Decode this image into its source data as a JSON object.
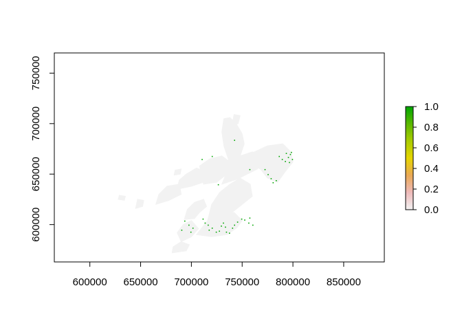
{
  "chart_data": {
    "type": "heatmap",
    "title": "",
    "xlabel": "",
    "ylabel": "",
    "xlim": [
      565000,
      890000
    ],
    "ylim": [
      563000,
      770000
    ],
    "x_ticks": [
      "600000",
      "650000",
      "700000",
      "750000",
      "800000",
      "850000"
    ],
    "y_ticks": [
      "600000",
      "650000",
      "700000",
      "750000"
    ],
    "legend": {
      "position": "right",
      "ticks": [
        "0.0",
        "0.2",
        "0.4",
        "0.6",
        "0.8",
        "1.0"
      ],
      "min": 0.0,
      "max": 1.0,
      "colors": [
        "#f2f2f2",
        "#eebaba",
        "#eaa955",
        "#e6d500",
        "#aacc00",
        "#5bb800",
        "#00a600"
      ]
    },
    "raster_color_zero": "#f2f2f2",
    "raster_color_one": "#00a600",
    "grid": false,
    "land_polygons_value_0": [
      [
        [
          681000,
          572000
        ],
        [
          695000,
          574000
        ],
        [
          698000,
          580000
        ],
        [
          690000,
          583000
        ],
        [
          682000,
          578000
        ]
      ],
      [
        [
          690000,
          583000
        ],
        [
          700000,
          588000
        ],
        [
          707000,
          596000
        ],
        [
          700000,
          604000
        ],
        [
          692000,
          600000
        ],
        [
          686000,
          592000
        ]
      ],
      [
        [
          693000,
          605000
        ],
        [
          703000,
          606000
        ],
        [
          708000,
          612000
        ],
        [
          715000,
          618000
        ],
        [
          712000,
          625000
        ],
        [
          703000,
          622000
        ],
        [
          696000,
          615000
        ]
      ],
      [
        [
          705000,
          590000
        ],
        [
          720000,
          588000
        ],
        [
          735000,
          590000
        ],
        [
          745000,
          597000
        ],
        [
          750000,
          604000
        ],
        [
          742000,
          612000
        ],
        [
          730000,
          608000
        ],
        [
          716000,
          604000
        ]
      ],
      [
        [
          716000,
          604000
        ],
        [
          728000,
          606000
        ],
        [
          740000,
          612000
        ],
        [
          750000,
          620000
        ],
        [
          760000,
          628000
        ],
        [
          758000,
          640000
        ],
        [
          748000,
          646000
        ],
        [
          738000,
          640000
        ],
        [
          728000,
          632000
        ],
        [
          720000,
          620000
        ]
      ],
      [
        [
          730000,
          640000
        ],
        [
          745000,
          645000
        ],
        [
          755000,
          650000
        ],
        [
          765000,
          655000
        ],
        [
          770000,
          668000
        ],
        [
          760000,
          672000
        ],
        [
          748000,
          668000
        ],
        [
          738000,
          660000
        ]
      ],
      [
        [
          748000,
          665000
        ],
        [
          762000,
          672000
        ],
        [
          775000,
          678000
        ],
        [
          790000,
          680000
        ],
        [
          798000,
          672000
        ],
        [
          800000,
          662000
        ],
        [
          792000,
          652000
        ],
        [
          785000,
          642000
        ],
        [
          775000,
          646000
        ],
        [
          768000,
          655000
        ]
      ],
      [
        [
          738000,
          660000
        ],
        [
          748000,
          668000
        ],
        [
          752000,
          680000
        ],
        [
          750000,
          690000
        ],
        [
          744000,
          700000
        ],
        [
          738000,
          706000
        ],
        [
          732000,
          705000
        ],
        [
          730000,
          692000
        ],
        [
          732000,
          678000
        ]
      ],
      [
        [
          712000,
          640000
        ],
        [
          725000,
          642000
        ],
        [
          735000,
          650000
        ],
        [
          738000,
          662000
        ],
        [
          730000,
          668000
        ],
        [
          718000,
          665000
        ],
        [
          708000,
          658000
        ]
      ],
      [
        [
          686000,
          635000
        ],
        [
          700000,
          638000
        ],
        [
          712000,
          642000
        ],
        [
          715000,
          652000
        ],
        [
          705000,
          656000
        ],
        [
          695000,
          650000
        ],
        [
          688000,
          644000
        ]
      ],
      [
        [
          665000,
          620000
        ],
        [
          678000,
          624000
        ],
        [
          690000,
          630000
        ],
        [
          688000,
          640000
        ],
        [
          676000,
          638000
        ],
        [
          668000,
          630000
        ]
      ],
      [
        [
          628000,
          625000
        ],
        [
          634000,
          624000
        ],
        [
          635000,
          628000
        ],
        [
          629000,
          629000
        ]
      ],
      [
        [
          645000,
          616000
        ],
        [
          652000,
          618000
        ],
        [
          653000,
          624000
        ],
        [
          647000,
          625000
        ]
      ],
      [
        [
          683000,
          649000
        ],
        [
          689000,
          650000
        ],
        [
          690000,
          655000
        ],
        [
          684000,
          654000
        ]
      ],
      [
        [
          740000,
          698000
        ],
        [
          746000,
          700000
        ],
        [
          748000,
          708000
        ],
        [
          742000,
          709000
        ]
      ]
    ],
    "cells_value_1": [
      [
        693000,
        604000
      ],
      [
        697000,
        600000
      ],
      [
        690000,
        595000
      ],
      [
        699000,
        593000
      ],
      [
        701000,
        597000
      ],
      [
        711000,
        606000
      ],
      [
        713000,
        602000
      ],
      [
        716000,
        600000
      ],
      [
        717000,
        595000
      ],
      [
        720000,
        597000
      ],
      [
        724000,
        593000
      ],
      [
        727000,
        594000
      ],
      [
        729000,
        599000
      ],
      [
        731000,
        602000
      ],
      [
        733000,
        598000
      ],
      [
        734000,
        593000
      ],
      [
        737000,
        592000
      ],
      [
        740000,
        597000
      ],
      [
        742000,
        600000
      ],
      [
        745000,
        603000
      ],
      [
        749000,
        606000
      ],
      [
        752000,
        605000
      ],
      [
        756000,
        602000
      ],
      [
        760000,
        600000
      ],
      [
        757000,
        607000
      ],
      [
        772000,
        655000
      ],
      [
        775000,
        650000
      ],
      [
        778000,
        646000
      ],
      [
        780000,
        642000
      ],
      [
        783000,
        644000
      ],
      [
        786000,
        668000
      ],
      [
        789000,
        665000
      ],
      [
        792000,
        663000
      ],
      [
        795000,
        667000
      ],
      [
        797000,
        670000
      ],
      [
        799000,
        665000
      ],
      [
        796000,
        662000
      ],
      [
        793000,
        671000
      ],
      [
        798000,
        672000
      ],
      [
        710000,
        665000
      ],
      [
        726000,
        640000
      ],
      [
        742000,
        684000
      ],
      [
        757000,
        655000
      ],
      [
        720000,
        668000
      ]
    ]
  }
}
